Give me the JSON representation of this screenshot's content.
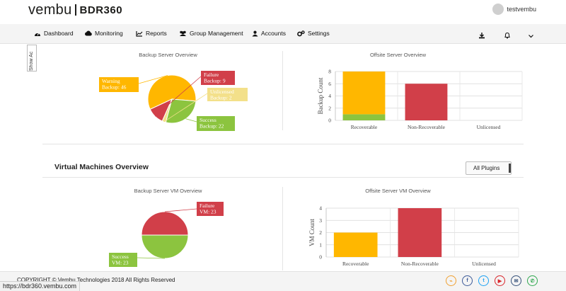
{
  "header": {
    "logo_word": "vembu",
    "logo_product": "BDR360",
    "username": "testvembu"
  },
  "nav": {
    "items": [
      {
        "label": "Dashboard",
        "icon": "dashboard-icon"
      },
      {
        "label": "Monitoring",
        "icon": "cloud-icon"
      },
      {
        "label": "Reports",
        "icon": "chart-icon"
      },
      {
        "label": "Group Management",
        "icon": "users-icon"
      },
      {
        "label": "Accounts",
        "icon": "user-icon"
      },
      {
        "label": "Settings",
        "icon": "gears-icon"
      }
    ],
    "right_icons": [
      "download-icon",
      "bell-icon",
      "chevron-down-icon"
    ]
  },
  "side_tab": {
    "label": "Show Ac"
  },
  "backup_section": {
    "left_title": "Backup Server Overview",
    "right_title": "Offsite Server Overview"
  },
  "vm_section": {
    "title": "Virtual Machines Overview",
    "plugins_button": "All Plugins",
    "left_title": "Backup Server VM Overview",
    "right_title": "Offsite Server VM Overview"
  },
  "chart_data": [
    {
      "type": "pie",
      "title": "Backup Server Overview",
      "slices": [
        {
          "label": "Warning Backup: 46",
          "name": "Warning",
          "value": 46,
          "color": "#ffb700"
        },
        {
          "label": "Success Backup: 22",
          "name": "Success",
          "value": 22,
          "color": "#8cc43f"
        },
        {
          "label": "Unlicensed Backup: 2",
          "name": "Unlicensed",
          "value": 2,
          "color": "#f3e08a"
        },
        {
          "label": "Failure Backup: 9",
          "name": "Failure",
          "value": 9,
          "color": "#d13f49"
        }
      ],
      "label_lines": [
        [
          "Warning",
          "Backup: 46"
        ],
        [
          "Success",
          "Backup: 22"
        ],
        [
          "Unlicensed",
          "Backup: 2"
        ],
        [
          "Failure",
          "Backup: 9"
        ]
      ]
    },
    {
      "type": "bar",
      "title": "Offsite Server Overview",
      "ylabel": "Backup Count",
      "categories": [
        "Recoverable",
        "Non-Recoverable",
        "Unlicensed"
      ],
      "yticks": [
        "0",
        "2",
        "4",
        "6",
        "8"
      ],
      "ylim": [
        0,
        8
      ],
      "grid": true,
      "series": [
        {
          "color": "#8cc43f",
          "values": [
            1,
            0,
            0
          ]
        },
        {
          "color": "#ffb700",
          "values": [
            7,
            0,
            0
          ]
        },
        {
          "color": "#d13f49",
          "values": [
            0,
            6,
            0
          ]
        }
      ]
    },
    {
      "type": "pie",
      "title": "Backup Server VM Overview",
      "slices": [
        {
          "label": "Failure VM: 23",
          "name": "Failure",
          "value": 23,
          "color": "#d13f49"
        },
        {
          "label": "Success VM: 23",
          "name": "Success",
          "value": 23,
          "color": "#8cc43f"
        }
      ],
      "label_lines": [
        [
          "Failure",
          "VM: 23"
        ],
        [
          "Success",
          "VM: 23"
        ]
      ]
    },
    {
      "type": "bar",
      "title": "Offsite Server VM Overview",
      "ylabel": "VM Count",
      "categories": [
        "Recoverable",
        "Non-Recoverable",
        "Unlicensed"
      ],
      "yticks": [
        "0",
        "1",
        "2",
        "3",
        "4"
      ],
      "ylim": [
        0,
        4
      ],
      "grid": true,
      "series": [
        {
          "color": "#ffb700",
          "values": [
            2,
            0,
            0
          ]
        },
        {
          "color": "#d13f49",
          "values": [
            0,
            4,
            0
          ]
        }
      ]
    }
  ],
  "footer": {
    "copyright": "COPYRIGHT © Vembu Technologies",
    "year_text": "2018 All Rights Reserved",
    "status_url": "https://bdr360.vembu.com",
    "social": [
      {
        "name": "chat-icon",
        "glyph": "⌁",
        "color": "#f0a030"
      },
      {
        "name": "facebook-icon",
        "glyph": "f",
        "color": "#3b5998"
      },
      {
        "name": "twitter-icon",
        "glyph": "t",
        "color": "#1da1f2"
      },
      {
        "name": "youtube-icon",
        "glyph": "▶",
        "color": "#d9252a"
      },
      {
        "name": "mail-icon",
        "glyph": "✉",
        "color": "#35517a"
      },
      {
        "name": "whatsapp-icon",
        "glyph": "✆",
        "color": "#2fa84f"
      }
    ]
  }
}
